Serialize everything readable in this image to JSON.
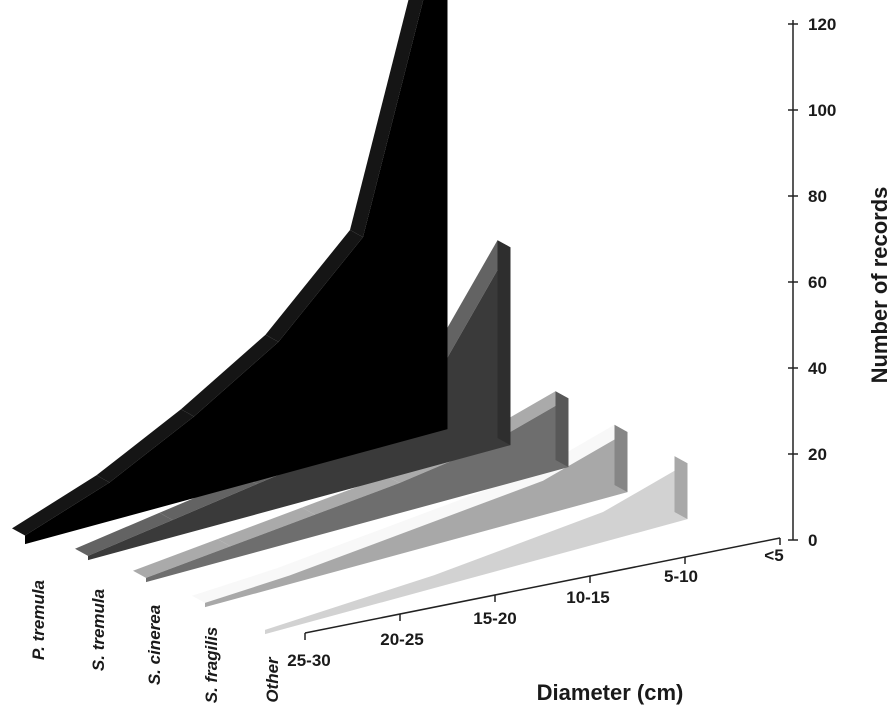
{
  "chart_data": {
    "type": "area",
    "categories": [
      "25-30",
      "20-25",
      "15-20",
      "10-15",
      "5-10",
      "<5"
    ],
    "series": [
      {
        "name": "P. tremula",
        "values": [
          2,
          9,
          19,
          31,
          50,
          122
        ],
        "color": "#000000"
      },
      {
        "name": "S. tremula",
        "values": [
          1,
          4,
          7,
          10,
          17,
          46
        ],
        "color": "#3a3a3a"
      },
      {
        "name": "S. cinerea",
        "values": [
          1,
          3,
          5,
          7,
          10,
          16
        ],
        "color": "#6e6e6e"
      },
      {
        "name": "S. fragilis",
        "values": [
          1,
          2,
          4,
          6,
          8,
          14
        ],
        "color": "#a8a8a8"
      },
      {
        "name": "Other",
        "values": [
          1,
          2,
          3,
          5,
          7,
          13
        ],
        "color": "#d2d2d2"
      }
    ],
    "xlabel": "Diameter  (cm)",
    "ylabel": "Number of records",
    "ylim": [
      0,
      120
    ],
    "yticks": [
      0,
      20,
      40,
      60,
      80,
      100,
      120
    ]
  }
}
